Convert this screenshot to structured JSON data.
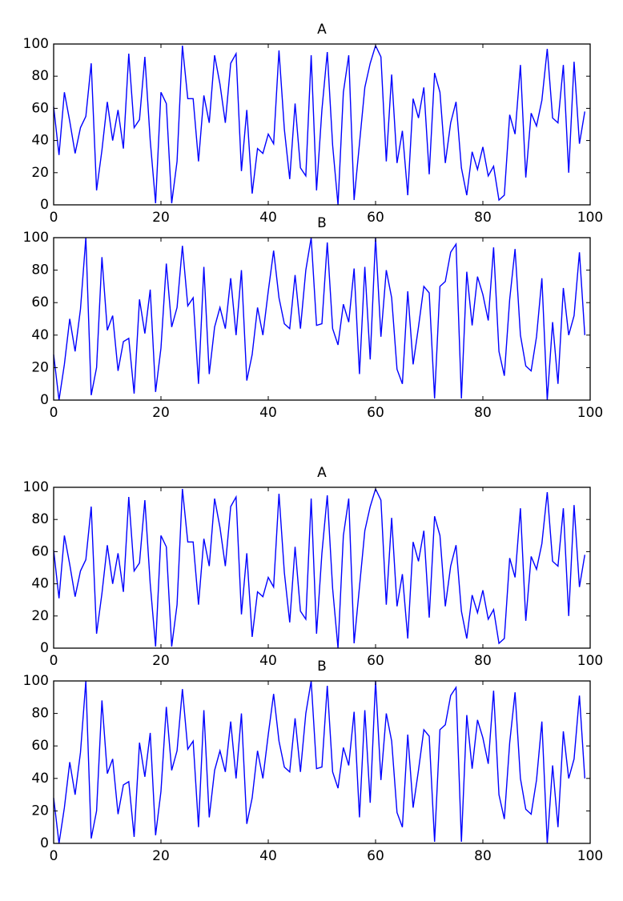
{
  "chart_data": [
    {
      "type": "line",
      "title": "A",
      "color": "#0000ff",
      "x": [
        0,
        1,
        2,
        3,
        4,
        5,
        6,
        7,
        8,
        9,
        10,
        11,
        12,
        13,
        14,
        15,
        16,
        17,
        18,
        19,
        20,
        21,
        22,
        23,
        24,
        25,
        26,
        27,
        28,
        29,
        30,
        31,
        32,
        33,
        34,
        35,
        36,
        37,
        38,
        39,
        40,
        41,
        42,
        43,
        44,
        45,
        46,
        47,
        48,
        49,
        50,
        51,
        52,
        53,
        54,
        55,
        56,
        57,
        58,
        59,
        60,
        61,
        62,
        63,
        64,
        65,
        66,
        67,
        68,
        69,
        70,
        71,
        72,
        73,
        74,
        75,
        76,
        77,
        78,
        79,
        80,
        81,
        82,
        83,
        84,
        85,
        86,
        87,
        88,
        89,
        90,
        91,
        92,
        93,
        94,
        95,
        96,
        97,
        98,
        99
      ],
      "values": [
        61,
        31,
        70,
        52,
        32,
        48,
        55,
        88,
        9,
        34,
        64,
        40,
        59,
        35,
        94,
        48,
        53,
        92,
        40,
        1,
        70,
        63,
        1,
        27,
        99,
        66,
        66,
        27,
        68,
        51,
        93,
        75,
        51,
        88,
        94,
        21,
        59,
        7,
        35,
        32,
        44,
        38,
        96,
        47,
        16,
        63,
        23,
        18,
        93,
        9,
        59,
        95,
        37,
        0,
        70,
        93,
        3,
        38,
        73,
        88,
        99,
        92,
        27,
        81,
        26,
        46,
        6,
        66,
        54,
        73,
        19,
        82,
        70,
        26,
        51,
        64,
        23,
        6,
        33,
        22,
        36,
        18,
        24,
        3,
        6,
        56,
        44,
        87,
        17,
        57,
        49,
        65,
        97,
        54,
        51,
        87,
        20,
        89,
        38,
        58
      ],
      "xlim": [
        0,
        100
      ],
      "ylim": [
        0,
        100
      ],
      "xticks": [
        0,
        20,
        40,
        60,
        80,
        100
      ],
      "yticks": [
        0,
        20,
        40,
        60,
        80,
        100
      ]
    },
    {
      "type": "line",
      "title": "B",
      "color": "#0000ff",
      "x": [
        0,
        1,
        2,
        3,
        4,
        5,
        6,
        7,
        8,
        9,
        10,
        11,
        12,
        13,
        14,
        15,
        16,
        17,
        18,
        19,
        20,
        21,
        22,
        23,
        24,
        25,
        26,
        27,
        28,
        29,
        30,
        31,
        32,
        33,
        34,
        35,
        36,
        37,
        38,
        39,
        40,
        41,
        42,
        43,
        44,
        45,
        46,
        47,
        48,
        49,
        50,
        51,
        52,
        53,
        54,
        55,
        56,
        57,
        58,
        59,
        60,
        61,
        62,
        63,
        64,
        65,
        66,
        67,
        68,
        69,
        70,
        71,
        72,
        73,
        74,
        75,
        76,
        77,
        78,
        79,
        80,
        81,
        82,
        83,
        84,
        85,
        86,
        87,
        88,
        89,
        90,
        91,
        92,
        93,
        94,
        95,
        96,
        97,
        98,
        99
      ],
      "values": [
        28,
        0,
        22,
        50,
        30,
        56,
        100,
        3,
        20,
        88,
        43,
        52,
        18,
        36,
        38,
        4,
        62,
        41,
        68,
        5,
        32,
        84,
        45,
        57,
        95,
        58,
        63,
        10,
        82,
        16,
        45,
        57,
        44,
        75,
        40,
        80,
        12,
        28,
        57,
        40,
        67,
        92,
        63,
        47,
        44,
        77,
        44,
        80,
        100,
        46,
        47,
        97,
        44,
        34,
        59,
        48,
        81,
        16,
        82,
        25,
        100,
        39,
        80,
        63,
        19,
        10,
        67,
        22,
        45,
        70,
        66,
        1,
        70,
        73,
        91,
        96,
        1,
        79,
        46,
        76,
        65,
        49,
        94,
        30,
        15,
        62,
        93,
        40,
        21,
        18,
        39,
        75,
        0,
        48,
        10,
        69,
        40,
        52,
        91,
        40
      ],
      "xlim": [
        0,
        100
      ],
      "ylim": [
        0,
        100
      ],
      "xticks": [
        0,
        20,
        40,
        60,
        80,
        100
      ],
      "yticks": [
        0,
        20,
        40,
        60,
        80,
        100
      ]
    },
    {
      "type": "line",
      "title": "A",
      "color": "#0000ff",
      "x": [
        0,
        1,
        2,
        3,
        4,
        5,
        6,
        7,
        8,
        9,
        10,
        11,
        12,
        13,
        14,
        15,
        16,
        17,
        18,
        19,
        20,
        21,
        22,
        23,
        24,
        25,
        26,
        27,
        28,
        29,
        30,
        31,
        32,
        33,
        34,
        35,
        36,
        37,
        38,
        39,
        40,
        41,
        42,
        43,
        44,
        45,
        46,
        47,
        48,
        49,
        50,
        51,
        52,
        53,
        54,
        55,
        56,
        57,
        58,
        59,
        60,
        61,
        62,
        63,
        64,
        65,
        66,
        67,
        68,
        69,
        70,
        71,
        72,
        73,
        74,
        75,
        76,
        77,
        78,
        79,
        80,
        81,
        82,
        83,
        84,
        85,
        86,
        87,
        88,
        89,
        90,
        91,
        92,
        93,
        94,
        95,
        96,
        97,
        98,
        99
      ],
      "values": [
        61,
        31,
        70,
        52,
        32,
        48,
        55,
        88,
        9,
        34,
        64,
        40,
        59,
        35,
        94,
        48,
        53,
        92,
        40,
        1,
        70,
        63,
        1,
        27,
        99,
        66,
        66,
        27,
        68,
        51,
        93,
        75,
        51,
        88,
        94,
        21,
        59,
        7,
        35,
        32,
        44,
        38,
        96,
        47,
        16,
        63,
        23,
        18,
        93,
        9,
        59,
        95,
        37,
        0,
        70,
        93,
        3,
        38,
        73,
        88,
        99,
        92,
        27,
        81,
        26,
        46,
        6,
        66,
        54,
        73,
        19,
        82,
        70,
        26,
        51,
        64,
        23,
        6,
        33,
        22,
        36,
        18,
        24,
        3,
        6,
        56,
        44,
        87,
        17,
        57,
        49,
        65,
        97,
        54,
        51,
        87,
        20,
        89,
        38,
        58
      ],
      "xlim": [
        0,
        100
      ],
      "ylim": [
        0,
        100
      ],
      "xticks": [
        0,
        20,
        40,
        60,
        80,
        100
      ],
      "yticks": [
        0,
        20,
        40,
        60,
        80,
        100
      ]
    },
    {
      "type": "line",
      "title": "B",
      "color": "#0000ff",
      "x": [
        0,
        1,
        2,
        3,
        4,
        5,
        6,
        7,
        8,
        9,
        10,
        11,
        12,
        13,
        14,
        15,
        16,
        17,
        18,
        19,
        20,
        21,
        22,
        23,
        24,
        25,
        26,
        27,
        28,
        29,
        30,
        31,
        32,
        33,
        34,
        35,
        36,
        37,
        38,
        39,
        40,
        41,
        42,
        43,
        44,
        45,
        46,
        47,
        48,
        49,
        50,
        51,
        52,
        53,
        54,
        55,
        56,
        57,
        58,
        59,
        60,
        61,
        62,
        63,
        64,
        65,
        66,
        67,
        68,
        69,
        70,
        71,
        72,
        73,
        74,
        75,
        76,
        77,
        78,
        79,
        80,
        81,
        82,
        83,
        84,
        85,
        86,
        87,
        88,
        89,
        90,
        91,
        92,
        93,
        94,
        95,
        96,
        97,
        98,
        99
      ],
      "values": [
        28,
        0,
        22,
        50,
        30,
        56,
        100,
        3,
        20,
        88,
        43,
        52,
        18,
        36,
        38,
        4,
        62,
        41,
        68,
        5,
        32,
        84,
        45,
        57,
        95,
        58,
        63,
        10,
        82,
        16,
        45,
        57,
        44,
        75,
        40,
        80,
        12,
        28,
        57,
        40,
        67,
        92,
        63,
        47,
        44,
        77,
        44,
        80,
        100,
        46,
        47,
        97,
        44,
        34,
        59,
        48,
        81,
        16,
        82,
        25,
        100,
        39,
        80,
        63,
        19,
        10,
        67,
        22,
        45,
        70,
        66,
        1,
        70,
        73,
        91,
        96,
        1,
        79,
        46,
        76,
        65,
        49,
        94,
        30,
        15,
        62,
        93,
        40,
        21,
        18,
        39,
        75,
        0,
        48,
        10,
        69,
        40,
        52,
        91,
        40
      ],
      "xlim": [
        0,
        100
      ],
      "ylim": [
        0,
        100
      ],
      "xticks": [
        0,
        20,
        40,
        60,
        80,
        100
      ],
      "yticks": [
        0,
        20,
        40,
        60,
        80,
        100
      ]
    }
  ]
}
